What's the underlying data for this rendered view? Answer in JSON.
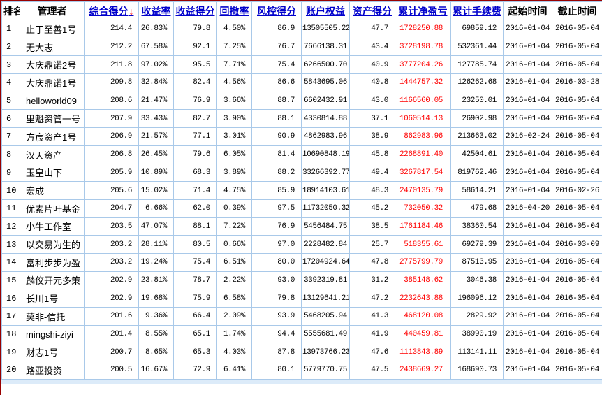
{
  "table": {
    "columns": [
      {
        "key": "rank",
        "label": "排名",
        "sortable": false
      },
      {
        "key": "manager",
        "label": "管理者",
        "sortable": false
      },
      {
        "key": "composite-score",
        "label": "综合得分",
        "sortable": true,
        "sorted": "desc"
      },
      {
        "key": "return-rate",
        "label": "收益率",
        "sortable": true
      },
      {
        "key": "return-score",
        "label": "收益得分",
        "sortable": true
      },
      {
        "key": "drawdown-rate",
        "label": "回撤率",
        "sortable": true
      },
      {
        "key": "risk-score",
        "label": "风控得分",
        "sortable": true
      },
      {
        "key": "account-equity",
        "label": "账户权益",
        "sortable": true
      },
      {
        "key": "asset-score",
        "label": "资产得分",
        "sortable": true
      },
      {
        "key": "net-pnl",
        "label": "累计净盈亏",
        "sortable": true
      },
      {
        "key": "fees",
        "label": "累计手续费",
        "sortable": true
      },
      {
        "key": "start-date",
        "label": "起始时间",
        "sortable": false
      },
      {
        "key": "end-date",
        "label": "截止时间",
        "sortable": false
      }
    ],
    "sort_arrow": "↓",
    "rows": [
      [
        "1",
        "止于至善1号",
        "214.4",
        "26.83%",
        "79.8",
        "4.50%",
        "86.9",
        "13505505.22",
        "47.7",
        "1728250.88",
        "69859.12",
        "2016-01-04",
        "2016-05-04"
      ],
      [
        "2",
        "无大志",
        "212.2",
        "67.58%",
        "92.1",
        "7.25%",
        "76.7",
        "7666138.31",
        "43.4",
        "3728198.78",
        "532361.44",
        "2016-01-04",
        "2016-05-04"
      ],
      [
        "3",
        "大庆鼎诺2号",
        "211.8",
        "97.02%",
        "95.5",
        "7.71%",
        "75.4",
        "6266500.70",
        "40.9",
        "3777204.26",
        "127785.74",
        "2016-01-04",
        "2016-05-04"
      ],
      [
        "4",
        "大庆鼎诺1号",
        "209.8",
        "32.84%",
        "82.4",
        "4.56%",
        "86.6",
        "5843695.06",
        "40.8",
        "1444757.32",
        "126262.68",
        "2016-01-04",
        "2016-03-28"
      ],
      [
        "5",
        "helloworld09",
        "208.6",
        "21.47%",
        "76.9",
        "3.66%",
        "88.7",
        "6602432.91",
        "43.0",
        "1166560.05",
        "23250.01",
        "2016-01-04",
        "2016-05-04"
      ],
      [
        "6",
        "里魁资管一号",
        "207.9",
        "33.43%",
        "82.7",
        "3.90%",
        "88.1",
        "4330814.88",
        "37.1",
        "1060514.13",
        "26902.98",
        "2016-01-04",
        "2016-05-04"
      ],
      [
        "7",
        "方宸资产1号",
        "206.9",
        "21.57%",
        "77.1",
        "3.01%",
        "90.9",
        "4862983.96",
        "38.9",
        "862983.96",
        "213663.02",
        "2016-02-24",
        "2016-05-04"
      ],
      [
        "8",
        "汉天资产",
        "206.8",
        "26.45%",
        "79.6",
        "6.05%",
        "81.4",
        "10690848.19",
        "45.8",
        "2268891.40",
        "42504.61",
        "2016-01-04",
        "2016-05-04"
      ],
      [
        "9",
        "玉皇山下",
        "205.9",
        "10.89%",
        "68.3",
        "3.89%",
        "88.2",
        "33266392.77",
        "49.4",
        "3267817.54",
        "819762.46",
        "2016-01-04",
        "2016-05-04"
      ],
      [
        "10",
        "宏成",
        "205.6",
        "15.02%",
        "71.4",
        "4.75%",
        "85.9",
        "18914103.61",
        "48.3",
        "2470135.79",
        "58614.21",
        "2016-01-04",
        "2016-02-26"
      ],
      [
        "11",
        "优素片叶基金",
        "204.7",
        "6.66%",
        "62.0",
        "0.39%",
        "97.5",
        "11732050.32",
        "45.2",
        "732050.32",
        "479.68",
        "2016-04-20",
        "2016-05-04"
      ],
      [
        "12",
        "小牛工作室",
        "203.5",
        "47.07%",
        "88.1",
        "7.22%",
        "76.9",
        "5456484.75",
        "38.5",
        "1761184.46",
        "38360.54",
        "2016-01-04",
        "2016-05-04"
      ],
      [
        "13",
        "以交易为生的",
        "203.2",
        "28.11%",
        "80.5",
        "0.66%",
        "97.0",
        "2228482.84",
        "25.7",
        "518355.61",
        "69279.39",
        "2016-01-04",
        "2016-03-09"
      ],
      [
        "14",
        "富利步步为盈",
        "203.2",
        "19.24%",
        "75.4",
        "6.51%",
        "80.0",
        "17204924.64",
        "47.8",
        "2775799.79",
        "87513.95",
        "2016-01-04",
        "2016-05-04"
      ],
      [
        "15",
        "麟佼开元多策",
        "202.9",
        "23.81%",
        "78.7",
        "2.22%",
        "93.0",
        "3392319.81",
        "31.2",
        "385148.62",
        "3046.38",
        "2016-01-04",
        "2016-05-04"
      ],
      [
        "16",
        "长川1号",
        "202.9",
        "19.68%",
        "75.9",
        "6.58%",
        "79.8",
        "13129641.21",
        "47.2",
        "2232643.88",
        "196096.12",
        "2016-01-04",
        "2016-05-04"
      ],
      [
        "17",
        "莫非-信托",
        "201.6",
        "9.36%",
        "66.4",
        "2.09%",
        "93.9",
        "5468205.94",
        "41.3",
        "468120.08",
        "2829.92",
        "2016-01-04",
        "2016-05-04"
      ],
      [
        "18",
        "mingshi-ziyi",
        "201.4",
        "8.55%",
        "65.1",
        "1.74%",
        "94.4",
        "5555681.49",
        "41.9",
        "440459.81",
        "38990.19",
        "2016-01-04",
        "2016-05-04"
      ],
      [
        "19",
        "财志1号",
        "200.7",
        "8.65%",
        "65.3",
        "4.03%",
        "87.8",
        "13973766.23",
        "47.6",
        "1113843.89",
        "113141.11",
        "2016-01-04",
        "2016-05-04"
      ],
      [
        "20",
        "路亚投资",
        "200.5",
        "16.67%",
        "72.9",
        "6.41%",
        "80.1",
        "5779770.75",
        "47.5",
        "2438669.27",
        "168690.73",
        "2016-01-04",
        "2016-05-04"
      ]
    ]
  },
  "colors": {
    "header_link": "#0000cc",
    "sort_arrow": "#ff0000",
    "pnl_value": "#ff0000",
    "grid_line": "#a9c9e9",
    "outer_border": "#990000",
    "bottom_strip": "#dcebf9"
  }
}
